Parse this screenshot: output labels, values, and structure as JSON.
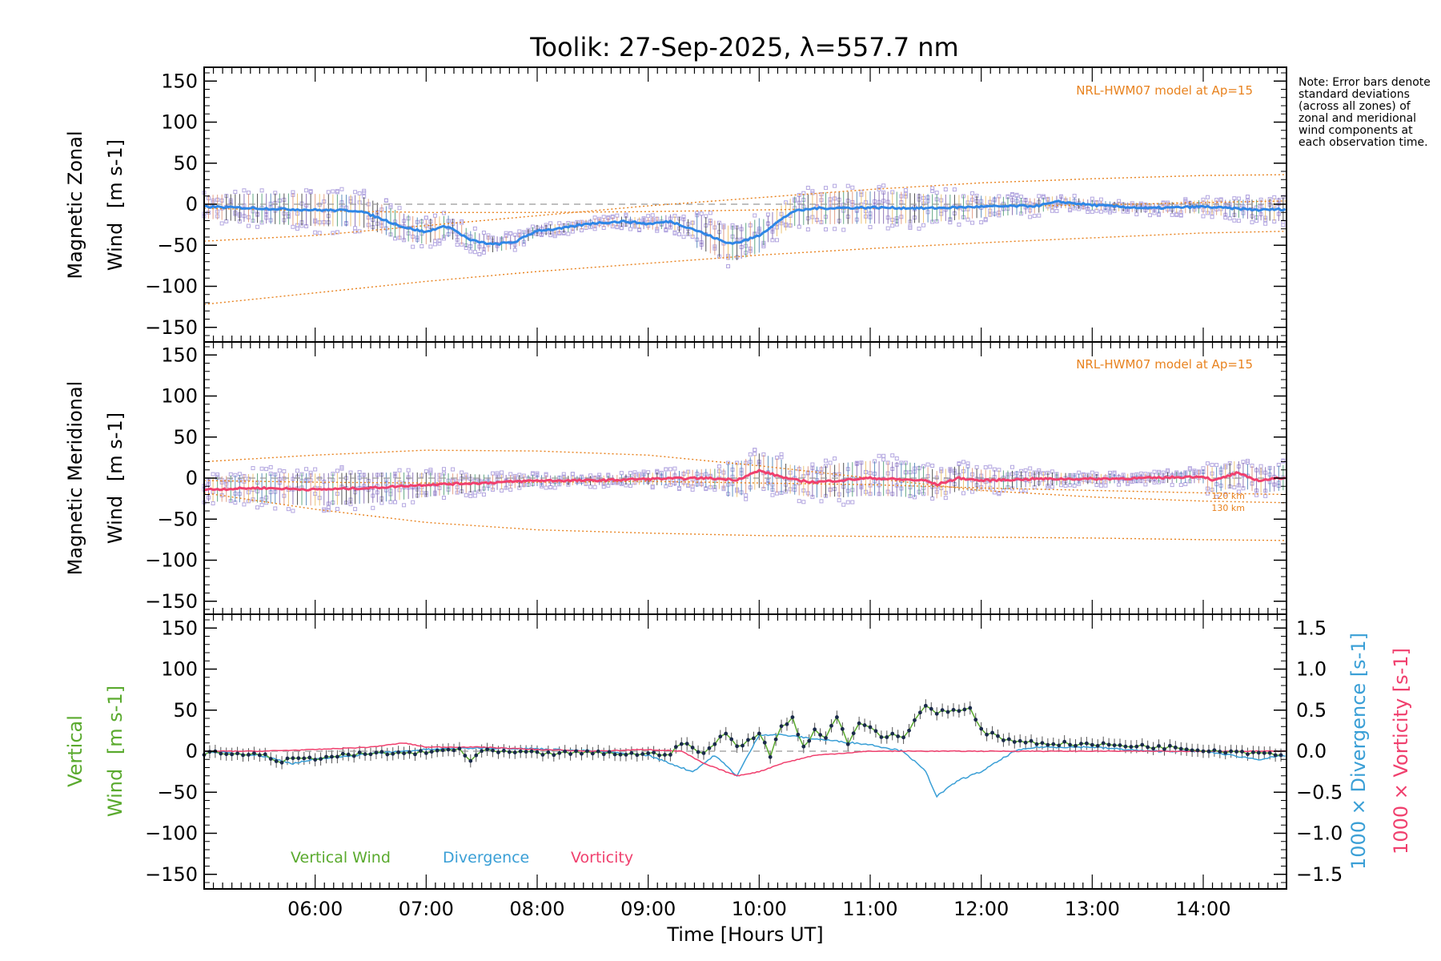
{
  "chart_data": [
    {
      "type": "line",
      "panel": "zonal",
      "title": "Toolik: 27-Sep-2025, λ=557.7 nm",
      "ylabel_line1": "Magnetic Zonal",
      "ylabel_line2_word": "Wind",
      "ylabel_units": "[m s-1]",
      "ylim": [
        -165,
        165
      ],
      "yticks": [
        -150,
        -100,
        -50,
        0,
        50,
        100,
        150
      ],
      "xlim": [
        5.0,
        14.75
      ],
      "annotation": "NRL-HWM07 model at Ap=15",
      "series": [
        {
          "name": "zonal_mean",
          "color": "#2f86e6",
          "x": [
            5.0,
            5.5,
            6.0,
            6.4,
            6.6,
            6.8,
            7.0,
            7.1,
            7.2,
            7.4,
            7.6,
            7.8,
            8.0,
            8.2,
            8.5,
            8.8,
            9.0,
            9.2,
            9.4,
            9.6,
            9.7,
            9.8,
            9.9,
            10.0,
            10.1,
            10.3,
            10.5,
            11.0,
            11.5,
            12.0,
            12.5,
            12.7,
            13.0,
            13.5,
            14.0,
            14.5,
            14.75
          ],
          "y": [
            -3,
            -5,
            -7,
            -8,
            -18,
            -28,
            -34,
            -29,
            -27,
            -44,
            -49,
            -46,
            -32,
            -30,
            -23,
            -21,
            -24,
            -21,
            -30,
            -41,
            -47,
            -47,
            -43,
            -38,
            -28,
            -9,
            -5,
            -4,
            -5,
            -3,
            -2,
            3,
            -1,
            -5,
            -3,
            -7,
            -6
          ]
        },
        {
          "name": "hwm_model_1",
          "color": "#e8821e",
          "x": [
            5.0,
            6.0,
            7.0,
            8.0,
            9.0,
            10.0,
            11.0,
            12.0,
            13.0,
            14.0,
            14.75
          ],
          "y": [
            -45,
            -38,
            -26,
            -14,
            -2,
            8,
            18,
            26,
            31,
            35,
            36
          ]
        },
        {
          "name": "hwm_model_2",
          "color": "#e8821e",
          "x": [
            5.0,
            6.0,
            7.0,
            8.0,
            9.0,
            10.0,
            11.0,
            12.0,
            13.0,
            14.0,
            14.75
          ],
          "y": [
            -122,
            -108,
            -94,
            -82,
            -72,
            -62,
            -54,
            -47,
            -41,
            -35,
            -33
          ]
        },
        {
          "name": "hwm_model_3",
          "color": "#e8821e",
          "x": [
            5.0,
            6.0,
            7.0,
            8.0,
            9.0,
            10.0,
            11.0,
            12.0,
            13.0,
            14.0,
            14.75
          ],
          "y": [
            -5,
            -8,
            -10,
            -10,
            -9,
            -7,
            -5,
            -3,
            -1,
            2,
            4
          ]
        }
      ]
    },
    {
      "type": "line",
      "panel": "meridional",
      "ylabel_line1": "Magnetic Meridional",
      "ylabel_line2_word": "Wind",
      "ylabel_units": "[m s-1]",
      "ylim": [
        -165,
        165
      ],
      "yticks": [
        -150,
        -100,
        -50,
        0,
        50,
        100,
        150
      ],
      "xlim": [
        5.0,
        14.75
      ],
      "annotation": "NRL-HWM07 model at Ap=15",
      "altitude_labels": [
        "120 km",
        "130 km"
      ],
      "series": [
        {
          "name": "meridional_mean",
          "color": "#f0406e",
          "x": [
            5.0,
            5.5,
            6.0,
            6.5,
            7.0,
            7.5,
            8.0,
            8.5,
            9.0,
            9.5,
            9.8,
            10.0,
            10.3,
            10.5,
            11.0,
            11.5,
            11.6,
            11.8,
            12.0,
            12.5,
            13.0,
            13.5,
            14.0,
            14.1,
            14.3,
            14.5,
            14.75
          ],
          "y": [
            -14,
            -12,
            -14,
            -12,
            -8,
            -6,
            -3,
            -3,
            -1,
            0,
            -2,
            9,
            -2,
            -5,
            0,
            -3,
            -8,
            0,
            -3,
            -1,
            -1,
            0,
            2,
            -3,
            6,
            -3,
            1
          ]
        },
        {
          "name": "hwm_model_1",
          "color": "#e8821e",
          "x": [
            5.0,
            6.0,
            7.0,
            8.0,
            9.0,
            10.0,
            11.0,
            12.0,
            13.0,
            14.0,
            14.75
          ],
          "y": [
            20,
            28,
            34,
            33,
            28,
            15,
            0,
            -15,
            -23,
            -28,
            -30
          ]
        },
        {
          "name": "hwm_model_2",
          "color": "#e8821e",
          "x": [
            5.0,
            6.0,
            7.0,
            8.0,
            9.0,
            10.0,
            11.0,
            12.0,
            13.0,
            14.0,
            14.75
          ],
          "y": [
            -18,
            -38,
            -54,
            -63,
            -67,
            -70,
            -71,
            -72,
            -73,
            -75,
            -76
          ]
        },
        {
          "name": "hwm_model_3",
          "color": "#e8821e",
          "x": [
            5.0,
            6.0,
            7.0,
            8.0,
            9.0,
            10.0,
            11.0,
            12.0,
            13.0,
            14.0,
            14.75
          ],
          "y": [
            -3,
            -5,
            -6,
            -5,
            -4,
            -6,
            -8,
            -12,
            -15,
            -18,
            -20
          ]
        }
      ]
    },
    {
      "type": "line",
      "panel": "vertical",
      "ylabel_line1": "Vertical",
      "ylabel_line2_word": "Wind",
      "ylabel_units": "[m s-1]",
      "ylim": [
        -165,
        165
      ],
      "yticks": [
        -150,
        -100,
        -50,
        0,
        50,
        100,
        150
      ],
      "y2lim": [
        -1.65,
        1.65
      ],
      "y2ticks": [
        -1.5,
        -1.0,
        -0.5,
        0.0,
        0.5,
        1.0,
        1.5
      ],
      "y2label_divergence": "1000 × Divergence [s-1]",
      "y2label_vorticity": "1000 × Vorticity [s-1]",
      "xlim": [
        5.0,
        14.75
      ],
      "xticks": [
        6,
        7,
        8,
        9,
        10,
        11,
        12,
        13,
        14
      ],
      "xtick_labels": [
        "06:00",
        "07:00",
        "08:00",
        "09:00",
        "10:00",
        "11:00",
        "12:00",
        "13:00",
        "14:00"
      ],
      "xlabel": "Time [Hours UT]",
      "legend": [
        "Vertical Wind",
        "Divergence",
        "Vorticity"
      ],
      "series": [
        {
          "name": "Vertical Wind",
          "color": "#5aaa2e",
          "x": [
            5.0,
            5.5,
            5.7,
            6.0,
            6.5,
            7.0,
            7.3,
            7.4,
            7.5,
            8.0,
            8.5,
            9.0,
            9.2,
            9.3,
            9.5,
            9.7,
            9.8,
            10.0,
            10.1,
            10.2,
            10.3,
            10.4,
            10.5,
            10.6,
            10.7,
            10.8,
            10.9,
            11.0,
            11.1,
            11.2,
            11.3,
            11.4,
            11.5,
            11.6,
            11.7,
            11.8,
            11.9,
            12.0,
            12.2,
            12.5,
            13.0,
            13.5,
            14.0,
            14.5,
            14.75
          ],
          "y": [
            -2,
            -4,
            -12,
            -8,
            -3,
            -2,
            3,
            -12,
            0,
            -3,
            -2,
            -4,
            -2,
            10,
            -3,
            22,
            5,
            22,
            -5,
            30,
            40,
            5,
            25,
            18,
            42,
            10,
            35,
            30,
            15,
            22,
            15,
            38,
            55,
            48,
            50,
            48,
            52,
            25,
            15,
            10,
            8,
            6,
            2,
            -2,
            -3
          ]
        },
        {
          "name": "Divergence",
          "color": "#3a9fd6",
          "x": [
            5.0,
            5.5,
            5.8,
            6.0,
            6.5,
            7.0,
            7.5,
            8.0,
            8.5,
            9.0,
            9.2,
            9.4,
            9.6,
            9.8,
            10.0,
            10.2,
            10.5,
            11.0,
            11.3,
            11.5,
            11.6,
            11.8,
            12.0,
            12.3,
            12.5,
            13.0,
            13.5,
            14.0,
            14.5,
            14.75
          ],
          "y": [
            0.0,
            -0.05,
            -0.15,
            -0.1,
            -0.03,
            0.02,
            0.04,
            0.03,
            0.0,
            -0.05,
            -0.15,
            -0.25,
            -0.05,
            -0.3,
            0.2,
            0.2,
            0.15,
            0.08,
            0.0,
            -0.25,
            -0.55,
            -0.35,
            -0.25,
            0.0,
            0.05,
            0.05,
            0.0,
            0.0,
            -0.1,
            -0.05
          ]
        },
        {
          "name": "Vorticity",
          "color": "#f0406e",
          "x": [
            5.0,
            5.5,
            6.0,
            6.5,
            6.8,
            7.0,
            7.5,
            8.0,
            8.5,
            9.0,
            9.3,
            9.5,
            9.7,
            9.8,
            10.0,
            10.2,
            10.5,
            11.0,
            11.5,
            12.0,
            12.5,
            13.0,
            13.5,
            14.0,
            14.5,
            14.75
          ],
          "y": [
            0.0,
            0.0,
            0.02,
            0.05,
            0.1,
            0.05,
            0.05,
            0.02,
            0.0,
            0.02,
            0.0,
            -0.15,
            -0.25,
            -0.3,
            -0.25,
            -0.15,
            -0.05,
            0.0,
            0.0,
            0.0,
            0.0,
            0.0,
            0.0,
            0.0,
            0.0,
            0.0
          ]
        }
      ]
    }
  ],
  "note": "Note: Error bars denote standard deviations (across all zones) of zonal and meridional wind components at each observation time.",
  "colors": {
    "model": "#e8821e",
    "zonal": "#2f86e6",
    "meridional": "#f0406e",
    "vertical": "#5aaa2e",
    "divergence": "#3a9fd6",
    "vorticity": "#f0406e",
    "scatter": "#b3a6e0"
  }
}
